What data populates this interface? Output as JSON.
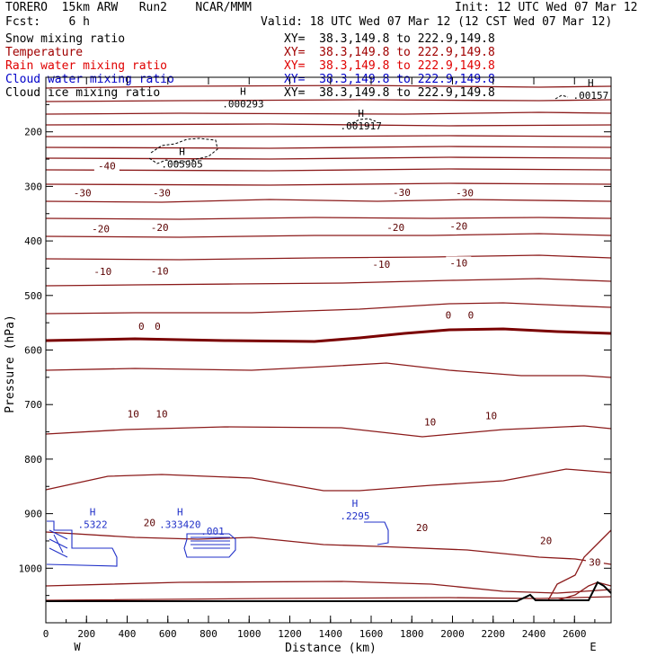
{
  "header": {
    "run_line": "TORERO  15km ARW   Run2    NCAR/MMM",
    "init": "Init: 12 UTC Wed 07 Mar 12",
    "fcst": "Fcst:    6 h",
    "valid": "Valid: 18 UTC Wed 07 Mar 12 (12 CST Wed 07 Mar 12)"
  },
  "fields": [
    {
      "name": "Snow mixing ratio",
      "xy": "XY=  38.3,149.8 to 222.9,149.8",
      "color": "#000000",
      "xy_color": "#000000"
    },
    {
      "name": "Temperature",
      "xy": "XY=  38.3,149.8 to 222.9,149.8",
      "color": "#a00000",
      "xy_color": "#a00000"
    },
    {
      "name": "Rain water mixing ratio",
      "xy": "XY=  38.3,149.8 to 222.9,149.8",
      "color": "#e00000",
      "xy_color": "#e00000"
    },
    {
      "name": "Cloud water mixing ratio",
      "xy": "XY=  38.3,149.8 to 222.9,149.8",
      "color": "#0000c8",
      "xy_color": "#0000c8"
    },
    {
      "name": "Cloud ice mixing ratio",
      "xy": "XY=  38.3,149.8 to 222.9,149.8",
      "color": "#000000",
      "xy_color": "#000000"
    }
  ],
  "chart_data": {
    "type": "cross-section contour",
    "xlabel": "Distance (km)",
    "ylabel": "Pressure (hPa)",
    "xlim": [
      0,
      2780
    ],
    "ylim": [
      1100,
      100
    ],
    "x_ticks": [
      0,
      200,
      400,
      600,
      800,
      1000,
      1200,
      1400,
      1600,
      1800,
      2000,
      2200,
      2400,
      2600
    ],
    "y_ticks": [
      200,
      300,
      400,
      500,
      600,
      700,
      800,
      900,
      1000
    ],
    "x_end_labels": [
      "W",
      "E"
    ],
    "temperature_labels": [
      {
        "text": "-40",
        "x": 300,
        "p": 262
      },
      {
        "text": "-30",
        "x": 180,
        "p": 312
      },
      {
        "text": "-30",
        "x": 570,
        "p": 312
      },
      {
        "text": "-30",
        "x": 1750,
        "p": 311
      },
      {
        "text": "-30",
        "x": 2060,
        "p": 312
      },
      {
        "text": "-20",
        "x": 270,
        "p": 378
      },
      {
        "text": "-20",
        "x": 560,
        "p": 375
      },
      {
        "text": "-20",
        "x": 1720,
        "p": 375
      },
      {
        "text": "-20",
        "x": 2030,
        "p": 373
      },
      {
        "text": "-10",
        "x": 280,
        "p": 456
      },
      {
        "text": "-10",
        "x": 560,
        "p": 455
      },
      {
        "text": "-10",
        "x": 1650,
        "p": 443
      },
      {
        "text": "-10",
        "x": 2030,
        "p": 440
      },
      {
        "text": "0",
        "x": 470,
        "p": 556
      },
      {
        "text": "0",
        "x": 550,
        "p": 556
      },
      {
        "text": "0",
        "x": 1980,
        "p": 536
      },
      {
        "text": "0",
        "x": 2090,
        "p": 536
      },
      {
        "text": "10",
        "x": 430,
        "p": 717
      },
      {
        "text": "10",
        "x": 570,
        "p": 717
      },
      {
        "text": "10",
        "x": 1890,
        "p": 732
      },
      {
        "text": "10",
        "x": 2190,
        "p": 720
      },
      {
        "text": "20",
        "x": 510,
        "p": 916
      },
      {
        "text": "20",
        "x": 1850,
        "p": 925
      },
      {
        "text": "20",
        "x": 2460,
        "p": 949
      },
      {
        "text": "30",
        "x": 2700,
        "p": 989
      }
    ],
    "maxima": [
      {
        "mark": "H",
        "value": ".000293",
        "x": 970,
        "p": 142
      },
      {
        "mark": "H",
        "value": ".00157",
        "x": 2680,
        "p": 126
      },
      {
        "mark": "H",
        "value": ".001917",
        "x": 1550,
        "p": 182
      },
      {
        "mark": "H",
        "value": ".005905",
        "x": 670,
        "p": 252
      },
      {
        "mark": "H",
        "value": ".5322",
        "x": 230,
        "p": 913
      },
      {
        "mark": "H",
        "value": ".333420",
        "x": 660,
        "p": 913
      },
      {
        "mark": "",
        "value": ".001",
        "x": 820,
        "p": 925
      },
      {
        "mark": "H",
        "value": ".2295",
        "x": 1520,
        "p": 897
      }
    ]
  }
}
